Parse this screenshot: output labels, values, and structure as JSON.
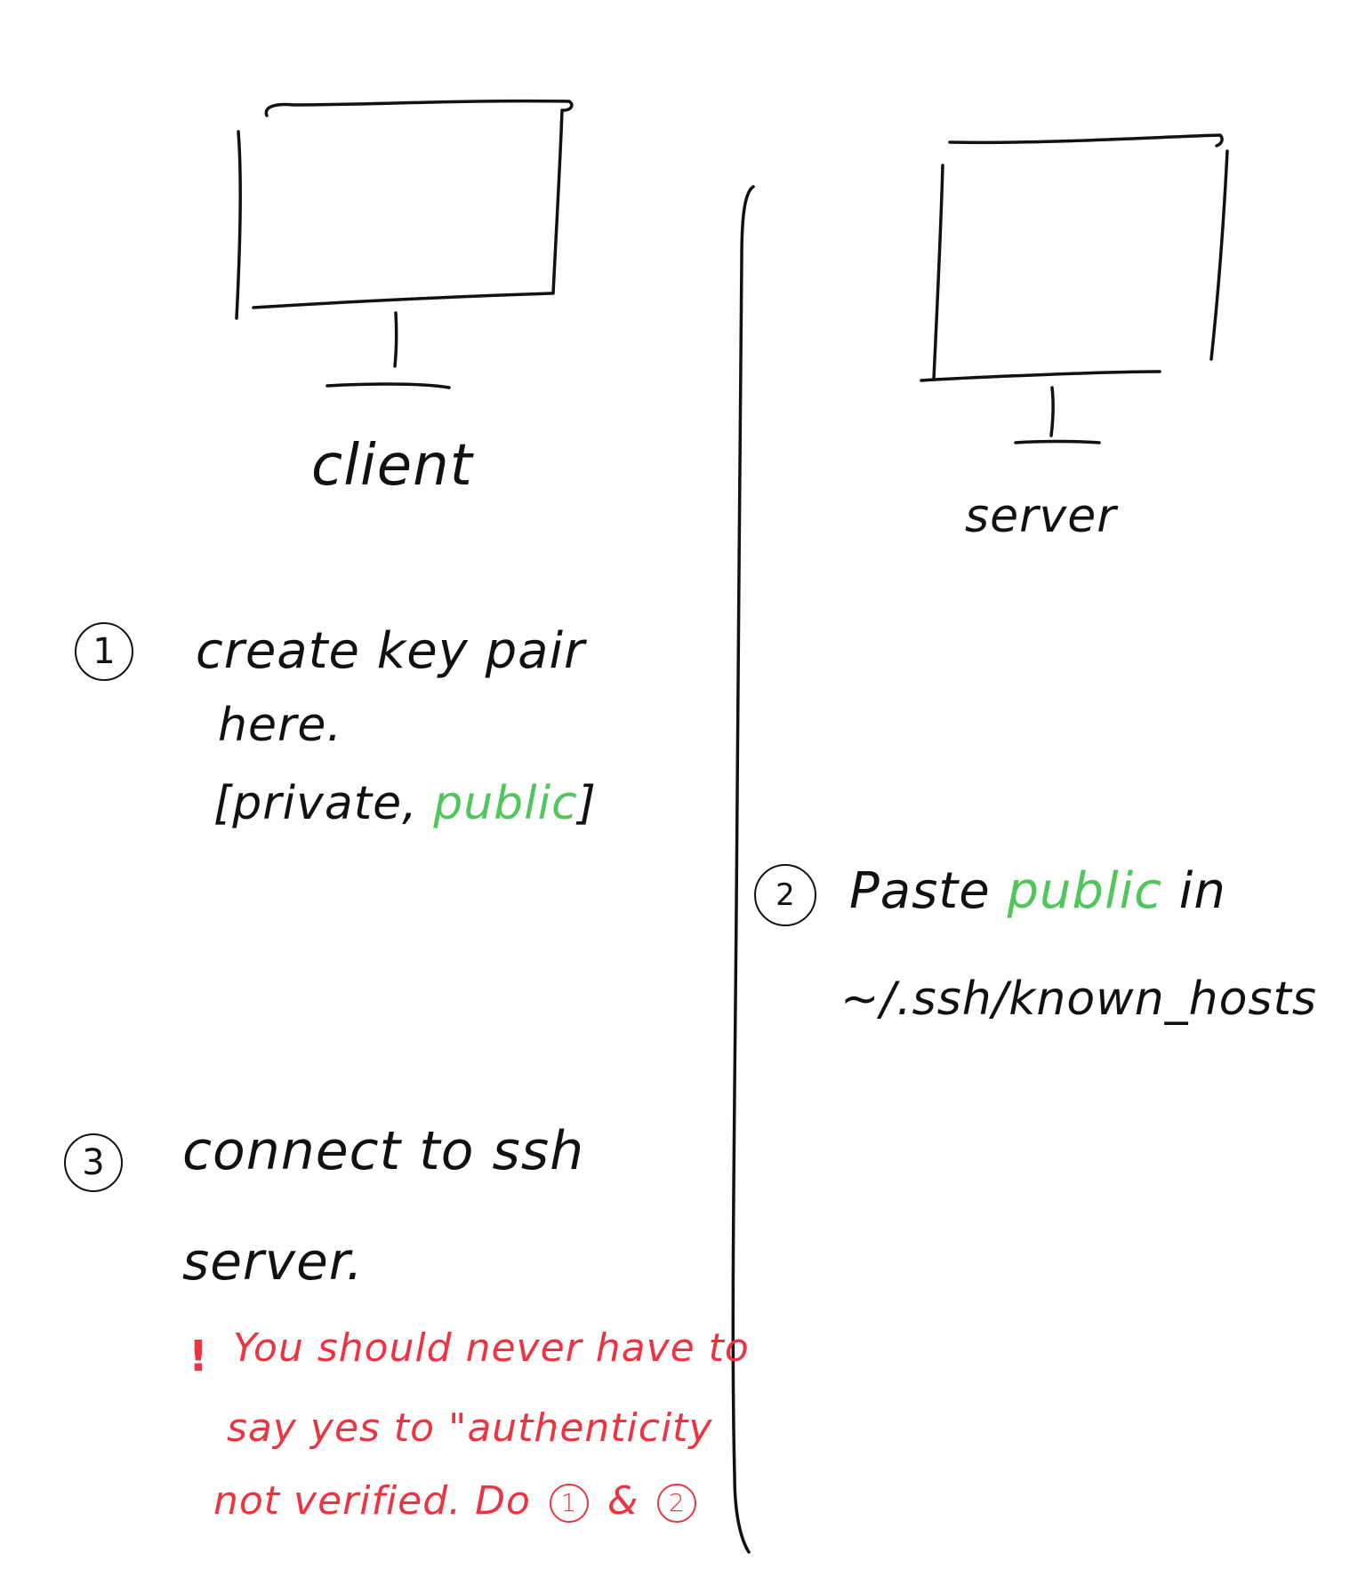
{
  "client": {
    "label": "client"
  },
  "server": {
    "label": "server"
  },
  "steps": [
    {
      "number": "1",
      "lines": [
        "create key pair",
        "here.",
        "[private,",
        "public",
        "]"
      ]
    },
    {
      "number": "2",
      "prefix": "Paste",
      "highlight": "public",
      "suffix": "in",
      "path": "~/.ssh/known_hosts"
    },
    {
      "number": "3",
      "lines": [
        "connect to ssh",
        "server."
      ]
    }
  ],
  "warning": {
    "bang": "!",
    "line1": "You should never have to",
    "line2": "say yes to \"authenticity",
    "line3_text": "not verified. Do",
    "ref1": "1",
    "amp": "&",
    "ref2": "2"
  },
  "colors": {
    "ink": "#111111",
    "public_key": "#4fc65a",
    "warning": "#ee3340"
  }
}
